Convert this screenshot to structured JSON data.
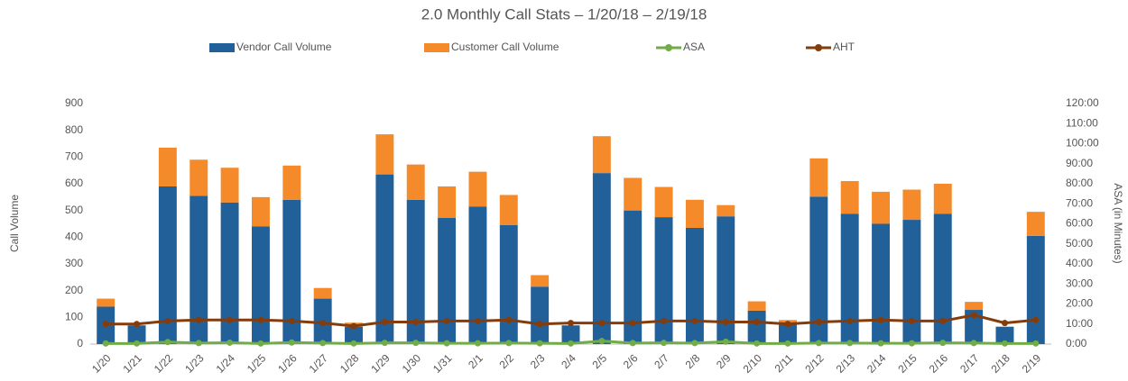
{
  "chart_data": {
    "type": "bar",
    "stacked": true,
    "title": "2.0 Monthly Call Stats – 1/20/18 – 2/19/18",
    "y_label": "Call Volume",
    "y2_label": "ASA (in Minutes)",
    "categories": [
      "1/20",
      "1/21",
      "1/22",
      "1/23",
      "1/24",
      "1/25",
      "1/26",
      "1/27",
      "1/28",
      "1/29",
      "1/30",
      "1/31",
      "2/1",
      "2/2",
      "2/3",
      "2/4",
      "2/5",
      "2/6",
      "2/7",
      "2/8",
      "2/9",
      "2/10",
      "2/11",
      "2/12",
      "2/13",
      "2/14",
      "2/15",
      "2/16",
      "2/17",
      "2/18",
      "2/19"
    ],
    "series": [
      {
        "name": "Vendor Call Volume",
        "type": "bar",
        "color": "#22609a",
        "values": [
          140,
          70,
          590,
          555,
          530,
          440,
          540,
          170,
          65,
          635,
          540,
          472,
          515,
          445,
          215,
          70,
          640,
          500,
          475,
          435,
          478,
          125,
          75,
          552,
          488,
          450,
          465,
          488,
          128,
          65,
          405
        ]
      },
      {
        "name": "Customer Call Volume",
        "type": "bar",
        "color": "#f58a2a",
        "values": [
          30,
          0,
          145,
          135,
          130,
          110,
          128,
          40,
          15,
          150,
          132,
          118,
          130,
          113,
          43,
          0,
          138,
          122,
          113,
          105,
          42,
          35,
          15,
          143,
          122,
          120,
          113,
          112,
          30,
          0,
          90
        ]
      },
      {
        "name": "ASA",
        "type": "line",
        "axis": "y2",
        "color": "#70ad47",
        "values": [
          0.3,
          0.3,
          1,
          0.5,
          0.7,
          0.3,
          0.8,
          0.5,
          0.3,
          0.6,
          0.6,
          0.4,
          0.4,
          0.5,
          0.4,
          0.3,
          1.5,
          0.5,
          0.6,
          0.5,
          1.2,
          0.3,
          0.3,
          0.5,
          0.5,
          0.4,
          0.4,
          0.6,
          0.5,
          0.3,
          0.3
        ]
      },
      {
        "name": "AHT",
        "type": "line",
        "axis": "y2",
        "color": "#843c0c",
        "values": [
          10,
          10,
          11.5,
          12,
          12,
          12,
          11.5,
          10.5,
          9,
          11,
          11,
          11.5,
          11.5,
          12,
          10,
          10.5,
          10.5,
          10.5,
          11.5,
          11.5,
          11,
          11,
          10,
          11,
          11.5,
          12,
          11.5,
          11.5,
          14.5,
          10.5,
          12
        ]
      }
    ],
    "ylim": [
      0,
      900
    ],
    "yticks": [
      0,
      100,
      200,
      300,
      400,
      500,
      600,
      700,
      800,
      900
    ],
    "y2lim": [
      0,
      120
    ],
    "y2ticks": [
      {
        "value": 0,
        "label": "0:00"
      },
      {
        "value": 10,
        "label": "10:00"
      },
      {
        "value": 20,
        "label": "20:00"
      },
      {
        "value": 30,
        "label": "30:00"
      },
      {
        "value": 40,
        "label": "40:00"
      },
      {
        "value": 50,
        "label": "50:00"
      },
      {
        "value": 60,
        "label": "60:00"
      },
      {
        "value": 70,
        "label": "70:00"
      },
      {
        "value": 80,
        "label": "80:00"
      },
      {
        "value": 90,
        "label": "90:00"
      },
      {
        "value": 100,
        "label": "100:00"
      },
      {
        "value": 110,
        "label": "110:00"
      },
      {
        "value": 120,
        "label": "120:00"
      }
    ],
    "legend": "top",
    "grid": false
  }
}
